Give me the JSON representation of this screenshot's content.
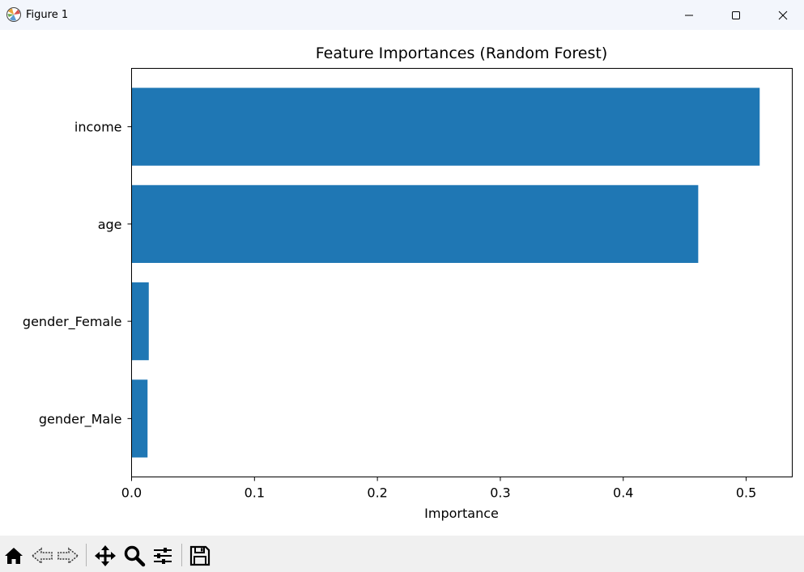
{
  "window": {
    "title": "Figure 1",
    "app_icon": "matplotlib-icon",
    "controls": [
      "minimize-icon",
      "maximize-icon",
      "close-icon"
    ]
  },
  "toolbar": {
    "tools": [
      "home-icon",
      "back-arrow-icon",
      "forward-arrow-icon",
      "pan-move-icon",
      "zoom-magnifier-icon",
      "configure-subplots-icon",
      "save-floppy-icon"
    ]
  },
  "chart_data": {
    "type": "bar",
    "orientation": "horizontal",
    "title": "Feature Importances (Random Forest)",
    "xlabel": "Importance",
    "ylabel": "",
    "categories": [
      "income",
      "age",
      "gender_Female",
      "gender_Male"
    ],
    "values": [
      0.511,
      0.461,
      0.014,
      0.013
    ],
    "xlim": [
      0,
      0.5375
    ],
    "xticks": [
      0.0,
      0.1,
      0.2,
      0.3,
      0.4,
      0.5
    ],
    "xtick_labels": [
      "0.0",
      "0.1",
      "0.2",
      "0.3",
      "0.4",
      "0.5"
    ],
    "bar_color": "#1f77b4",
    "grid": false,
    "legend": "none"
  }
}
